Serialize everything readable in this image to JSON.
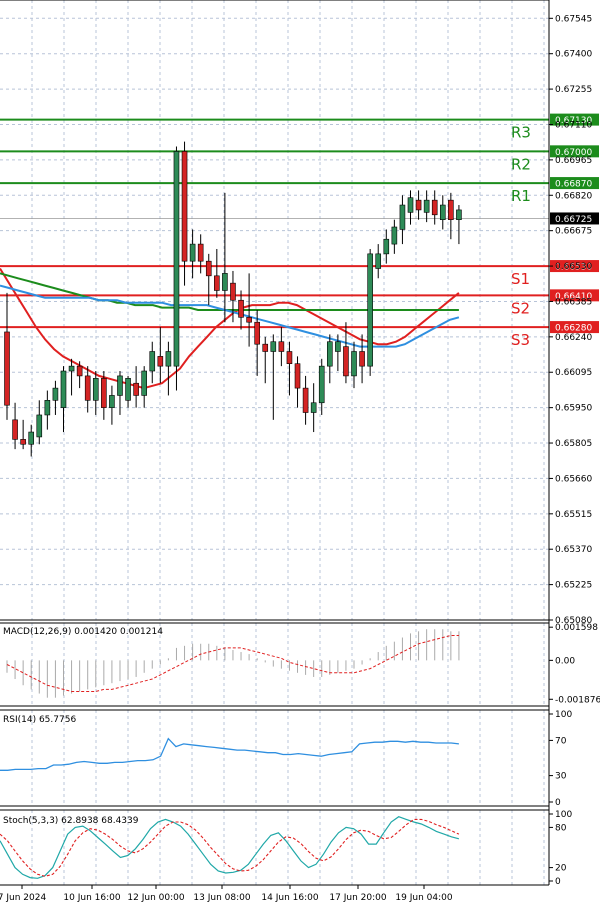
{
  "chart_data": {
    "type": "candlestick",
    "instrument_title": "",
    "main_panel": {
      "y_ticks": [
        "0.67545",
        "0.67400",
        "0.67255",
        "0.67110",
        "0.66965",
        "0.66820",
        "0.66675",
        "0.66530",
        "0.66385",
        "0.66240",
        "0.66095",
        "0.65950",
        "0.65805",
        "0.65660",
        "0.65515",
        "0.65370",
        "0.65225",
        "0.65080"
      ],
      "ylim": [
        0.6508,
        0.6762
      ],
      "grid": true,
      "candles": [
        {
          "o": 0.6626,
          "h": 0.6642,
          "l": 0.659,
          "c": 0.6596
        },
        {
          "o": 0.659,
          "h": 0.6597,
          "l": 0.6578,
          "c": 0.6582
        },
        {
          "o": 0.6582,
          "h": 0.659,
          "l": 0.6578,
          "c": 0.658
        },
        {
          "o": 0.658,
          "h": 0.6588,
          "l": 0.6575,
          "c": 0.6585
        },
        {
          "o": 0.6583,
          "h": 0.6598,
          "l": 0.658,
          "c": 0.6592
        },
        {
          "o": 0.6592,
          "h": 0.6602,
          "l": 0.6586,
          "c": 0.6598
        },
        {
          "o": 0.6598,
          "h": 0.6606,
          "l": 0.6592,
          "c": 0.6603
        },
        {
          "o": 0.6595,
          "h": 0.6612,
          "l": 0.6585,
          "c": 0.661
        },
        {
          "o": 0.661,
          "h": 0.6615,
          "l": 0.66,
          "c": 0.6612
        },
        {
          "o": 0.6612,
          "h": 0.6614,
          "l": 0.6603,
          "c": 0.6608
        },
        {
          "o": 0.6608,
          "h": 0.6612,
          "l": 0.6593,
          "c": 0.6598
        },
        {
          "o": 0.6598,
          "h": 0.661,
          "l": 0.6592,
          "c": 0.6607
        },
        {
          "o": 0.6607,
          "h": 0.661,
          "l": 0.659,
          "c": 0.6595
        },
        {
          "o": 0.6595,
          "h": 0.6604,
          "l": 0.6588,
          "c": 0.66
        },
        {
          "o": 0.66,
          "h": 0.661,
          "l": 0.6592,
          "c": 0.6608
        },
        {
          "o": 0.6598,
          "h": 0.6608,
          "l": 0.6595,
          "c": 0.6607
        },
        {
          "o": 0.6605,
          "h": 0.6612,
          "l": 0.6595,
          "c": 0.66
        },
        {
          "o": 0.66,
          "h": 0.6612,
          "l": 0.6595,
          "c": 0.661
        },
        {
          "o": 0.661,
          "h": 0.6622,
          "l": 0.6605,
          "c": 0.6618
        },
        {
          "o": 0.6616,
          "h": 0.6628,
          "l": 0.6605,
          "c": 0.6612
        },
        {
          "o": 0.6612,
          "h": 0.6622,
          "l": 0.66,
          "c": 0.6618
        },
        {
          "o": 0.6612,
          "h": 0.6702,
          "l": 0.6602,
          "c": 0.67
        },
        {
          "o": 0.67,
          "h": 0.6704,
          "l": 0.6645,
          "c": 0.6655
        },
        {
          "o": 0.6655,
          "h": 0.6668,
          "l": 0.6648,
          "c": 0.6662
        },
        {
          "o": 0.6662,
          "h": 0.6666,
          "l": 0.665,
          "c": 0.6655
        },
        {
          "o": 0.6655,
          "h": 0.6658,
          "l": 0.6637,
          "c": 0.6649
        },
        {
          "o": 0.6649,
          "h": 0.666,
          "l": 0.664,
          "c": 0.6643
        },
        {
          "o": 0.6643,
          "h": 0.6683,
          "l": 0.663,
          "c": 0.665
        },
        {
          "o": 0.6646,
          "h": 0.6651,
          "l": 0.663,
          "c": 0.6639
        },
        {
          "o": 0.6639,
          "h": 0.6643,
          "l": 0.6627,
          "c": 0.6632
        },
        {
          "o": 0.6632,
          "h": 0.665,
          "l": 0.662,
          "c": 0.663
        },
        {
          "o": 0.663,
          "h": 0.6635,
          "l": 0.6608,
          "c": 0.6621
        },
        {
          "o": 0.6621,
          "h": 0.6624,
          "l": 0.6605,
          "c": 0.6618
        },
        {
          "o": 0.6618,
          "h": 0.6625,
          "l": 0.659,
          "c": 0.6622
        },
        {
          "o": 0.6622,
          "h": 0.6628,
          "l": 0.6612,
          "c": 0.6618
        },
        {
          "o": 0.6618,
          "h": 0.6622,
          "l": 0.66,
          "c": 0.6613
        },
        {
          "o": 0.6613,
          "h": 0.6616,
          "l": 0.6595,
          "c": 0.6603
        },
        {
          "o": 0.6603,
          "h": 0.6608,
          "l": 0.6588,
          "c": 0.6593
        },
        {
          "o": 0.6593,
          "h": 0.6605,
          "l": 0.6585,
          "c": 0.6597
        },
        {
          "o": 0.6597,
          "h": 0.6615,
          "l": 0.6592,
          "c": 0.6612
        },
        {
          "o": 0.6612,
          "h": 0.6625,
          "l": 0.6605,
          "c": 0.6622
        },
        {
          "o": 0.6618,
          "h": 0.6625,
          "l": 0.661,
          "c": 0.6622
        },
        {
          "o": 0.662,
          "h": 0.663,
          "l": 0.6605,
          "c": 0.6608
        },
        {
          "o": 0.6608,
          "h": 0.6622,
          "l": 0.6603,
          "c": 0.6618
        },
        {
          "o": 0.6618,
          "h": 0.6625,
          "l": 0.6605,
          "c": 0.6612
        },
        {
          "o": 0.6612,
          "h": 0.666,
          "l": 0.6608,
          "c": 0.6658
        },
        {
          "o": 0.6652,
          "h": 0.6662,
          "l": 0.6648,
          "c": 0.6658
        },
        {
          "o": 0.6658,
          "h": 0.6668,
          "l": 0.6654,
          "c": 0.6664
        },
        {
          "o": 0.6662,
          "h": 0.6672,
          "l": 0.6658,
          "c": 0.6669
        },
        {
          "o": 0.6668,
          "h": 0.6682,
          "l": 0.6662,
          "c": 0.6678
        },
        {
          "o": 0.6675,
          "h": 0.6684,
          "l": 0.667,
          "c": 0.6681
        },
        {
          "o": 0.668,
          "h": 0.6684,
          "l": 0.6672,
          "c": 0.6676
        },
        {
          "o": 0.6675,
          "h": 0.6684,
          "l": 0.6671,
          "c": 0.668
        },
        {
          "o": 0.668,
          "h": 0.6684,
          "l": 0.667,
          "c": 0.6674
        },
        {
          "o": 0.6672,
          "h": 0.6682,
          "l": 0.6668,
          "c": 0.6678
        },
        {
          "o": 0.668,
          "h": 0.6683,
          "l": 0.6664,
          "c": 0.6672
        },
        {
          "o": 0.6672,
          "h": 0.6678,
          "l": 0.6662,
          "c": 0.6676
        }
      ],
      "levels": [
        {
          "name": "R3",
          "value": 0.6713,
          "label": "0.67130",
          "color": "#1c8c1c"
        },
        {
          "name": "R2",
          "value": 0.67,
          "label": "0.67000",
          "color": "#1c8c1c"
        },
        {
          "name": "R1",
          "value": 0.6687,
          "label": "0.66870",
          "color": "#1c8c1c"
        },
        {
          "name": "S1",
          "value": 0.6653,
          "label": "0.66530",
          "color": "#e02020"
        },
        {
          "name": "S2",
          "value": 0.6641,
          "label": "0.66410",
          "color": "#e02020"
        },
        {
          "name": "S3",
          "value": 0.6628,
          "label": "0.66280",
          "color": "#e02020"
        }
      ],
      "current_price": {
        "value": 0.66725,
        "label": "0.66725"
      },
      "ma_lines": [
        {
          "color": "#e02020",
          "points": [
            0.6652,
            0.6646,
            0.664,
            0.6634,
            0.6628,
            0.6623,
            0.6619,
            0.6616,
            0.6614,
            0.6612,
            0.661,
            0.6608,
            0.6607,
            0.6606,
            0.6605,
            0.6604,
            0.6603,
            0.6604,
            0.6605,
            0.6608,
            0.6611,
            0.6616,
            0.662,
            0.6624,
            0.6628,
            0.6631,
            0.6634,
            0.6636,
            0.6637,
            0.6637,
            0.6637,
            0.6638,
            0.6638,
            0.6637,
            0.6635,
            0.6633,
            0.6631,
            0.6629,
            0.6627,
            0.6625,
            0.6623,
            0.6622,
            0.6621,
            0.6621,
            0.6622,
            0.6624,
            0.6627,
            0.663,
            0.6633,
            0.6636,
            0.6639,
            0.6642
          ]
        },
        {
          "color": "#1c8c1c",
          "points": [
            0.665,
            0.6649,
            0.6648,
            0.6647,
            0.6646,
            0.6645,
            0.6644,
            0.6643,
            0.6642,
            0.6641,
            0.664,
            0.6639,
            0.6639,
            0.6638,
            0.6638,
            0.6637,
            0.6637,
            0.6637,
            0.6636,
            0.6636,
            0.6636,
            0.6636,
            0.6635,
            0.6635,
            0.6635,
            0.6635,
            0.6635,
            0.6635,
            0.6635,
            0.6635,
            0.6635,
            0.6635,
            0.6635,
            0.6635,
            0.6635,
            0.6635,
            0.6635,
            0.6635,
            0.6635,
            0.6635,
            0.6635,
            0.6635,
            0.6635,
            0.6635,
            0.6635,
            0.6635,
            0.6635,
            0.6635,
            0.6635,
            0.6635,
            0.6635,
            0.6635
          ]
        },
        {
          "color": "#2f8fe0",
          "points": [
            0.6645,
            0.6644,
            0.6643,
            0.6642,
            0.6641,
            0.664,
            0.664,
            0.664,
            0.664,
            0.664,
            0.664,
            0.6639,
            0.6639,
            0.6639,
            0.6638,
            0.6638,
            0.6638,
            0.6638,
            0.6638,
            0.6637,
            0.6637,
            0.6637,
            0.6637,
            0.6637,
            0.6636,
            0.6635,
            0.6634,
            0.6633,
            0.6632,
            0.6631,
            0.663,
            0.6629,
            0.6628,
            0.6627,
            0.6626,
            0.6625,
            0.6624,
            0.6623,
            0.6622,
            0.6621,
            0.662,
            0.662,
            0.662,
            0.662,
            0.662,
            0.6621,
            0.6623,
            0.6625,
            0.6627,
            0.6629,
            0.6631,
            0.6632
          ]
        }
      ]
    },
    "macd_panel": {
      "label": "MACD(12,26,9) 0.001420 0.001214",
      "y_ticks": [
        "0.001598",
        "0.00",
        "-0.001876"
      ],
      "ylim": [
        -0.0022,
        0.0018
      ],
      "histogram": [
        -0.0006,
        -0.0009,
        -0.0012,
        -0.0014,
        -0.0016,
        -0.0018,
        -0.0018,
        -0.0017,
        -0.0016,
        -0.0015,
        -0.0014,
        -0.0013,
        -0.0012,
        -0.0011,
        -0.001,
        -0.0009,
        -0.0008,
        -0.0006,
        -0.0004,
        -0.0002,
        0.0001,
        0.0006,
        0.0007,
        0.0008,
        0.0008,
        0.0008,
        0.0007,
        0.0006,
        0.0005,
        0.0004,
        0.0003,
        0.0001,
        -0.0001,
        -0.0003,
        -0.0004,
        -0.0005,
        -0.0006,
        -0.0007,
        -0.0008,
        -0.0008,
        -0.0007,
        -0.0006,
        -0.0005,
        -0.0004,
        -0.0002,
        0.0001,
        0.0004,
        0.0007,
        0.0009,
        0.0011,
        0.0013,
        0.0014,
        0.0015,
        0.0015,
        0.0015,
        0.0014,
        0.0014
      ],
      "signal": [
        -0.0002,
        -0.0004,
        -0.0006,
        -0.0008,
        -0.001,
        -0.0012,
        -0.0013,
        -0.0014,
        -0.0015,
        -0.0015,
        -0.0015,
        -0.0015,
        -0.0014,
        -0.0014,
        -0.0013,
        -0.0012,
        -0.0011,
        -0.001,
        -0.0009,
        -0.0007,
        -0.0005,
        -0.0003,
        -0.0001,
        0.0001,
        0.0003,
        0.0004,
        0.0005,
        0.0006,
        0.0006,
        0.0006,
        0.0005,
        0.0004,
        0.0003,
        0.0002,
        0.0001,
        -0.0001,
        -0.0002,
        -0.0003,
        -0.0004,
        -0.0005,
        -0.0006,
        -0.0006,
        -0.0006,
        -0.0006,
        -0.0005,
        -0.0004,
        -0.0002,
        0.0,
        0.0002,
        0.0004,
        0.0006,
        0.0008,
        0.0009,
        0.001,
        0.0011,
        0.0012,
        0.0012
      ]
    },
    "rsi_panel": {
      "label": "RSI(14) 65.7756",
      "y_ticks": [
        "100",
        "70",
        "30",
        "0"
      ],
      "ylim": [
        0,
        100
      ],
      "values": [
        36,
        36,
        37,
        37,
        37,
        38,
        38,
        42,
        42,
        43,
        45,
        46,
        45,
        44,
        44,
        45,
        45,
        46,
        47,
        47,
        48,
        52,
        72,
        63,
        66,
        65,
        64,
        63,
        62,
        61,
        60,
        59,
        59,
        58,
        57,
        56,
        56,
        54,
        54,
        55,
        54,
        53,
        52,
        54,
        55,
        56,
        57,
        66,
        67,
        68,
        68,
        69,
        69,
        68,
        69,
        68,
        68,
        67,
        67,
        67,
        66
      ]
    },
    "stoch_panel": {
      "label": "Stoch(5,3,3) 62.8938 68.4339",
      "y_ticks": [
        "100",
        "80",
        "20",
        "0"
      ],
      "ylim": [
        0,
        100
      ],
      "k": [
        60,
        40,
        20,
        10,
        5,
        4,
        8,
        20,
        45,
        70,
        80,
        82,
        75,
        65,
        55,
        45,
        35,
        38,
        48,
        62,
        78,
        88,
        92,
        88,
        82,
        70,
        55,
        40,
        25,
        15,
        12,
        13,
        16,
        25,
        40,
        55,
        68,
        72,
        60,
        45,
        30,
        20,
        25,
        40,
        58,
        72,
        80,
        78,
        70,
        55,
        55,
        72,
        88,
        96,
        92,
        88,
        85,
        80,
        74,
        70,
        66,
        63
      ],
      "d": [
        70,
        60,
        45,
        30,
        18,
        10,
        7,
        10,
        22,
        40,
        60,
        72,
        78,
        76,
        70,
        62,
        52,
        45,
        42,
        48,
        58,
        70,
        82,
        88,
        88,
        84,
        76,
        64,
        50,
        38,
        26,
        18,
        15,
        16,
        22,
        32,
        45,
        58,
        66,
        64,
        56,
        44,
        34,
        30,
        36,
        48,
        62,
        72,
        76,
        74,
        68,
        63,
        65,
        74,
        84,
        92,
        92,
        89,
        84,
        80,
        75,
        70
      ]
    },
    "x_ticks": [
      "7 Jun 2024",
      "10 Jun 16:00",
      "12 Jun 00:00",
      "13 Jun 08:00",
      "14 Jun 16:00",
      "17 Jun 20:00",
      "19 Jun 04:00"
    ],
    "colors": {
      "bull": "#2e8b57",
      "bear": "#d42424",
      "grid": "#b8c4d8",
      "axis": "#000000"
    }
  }
}
